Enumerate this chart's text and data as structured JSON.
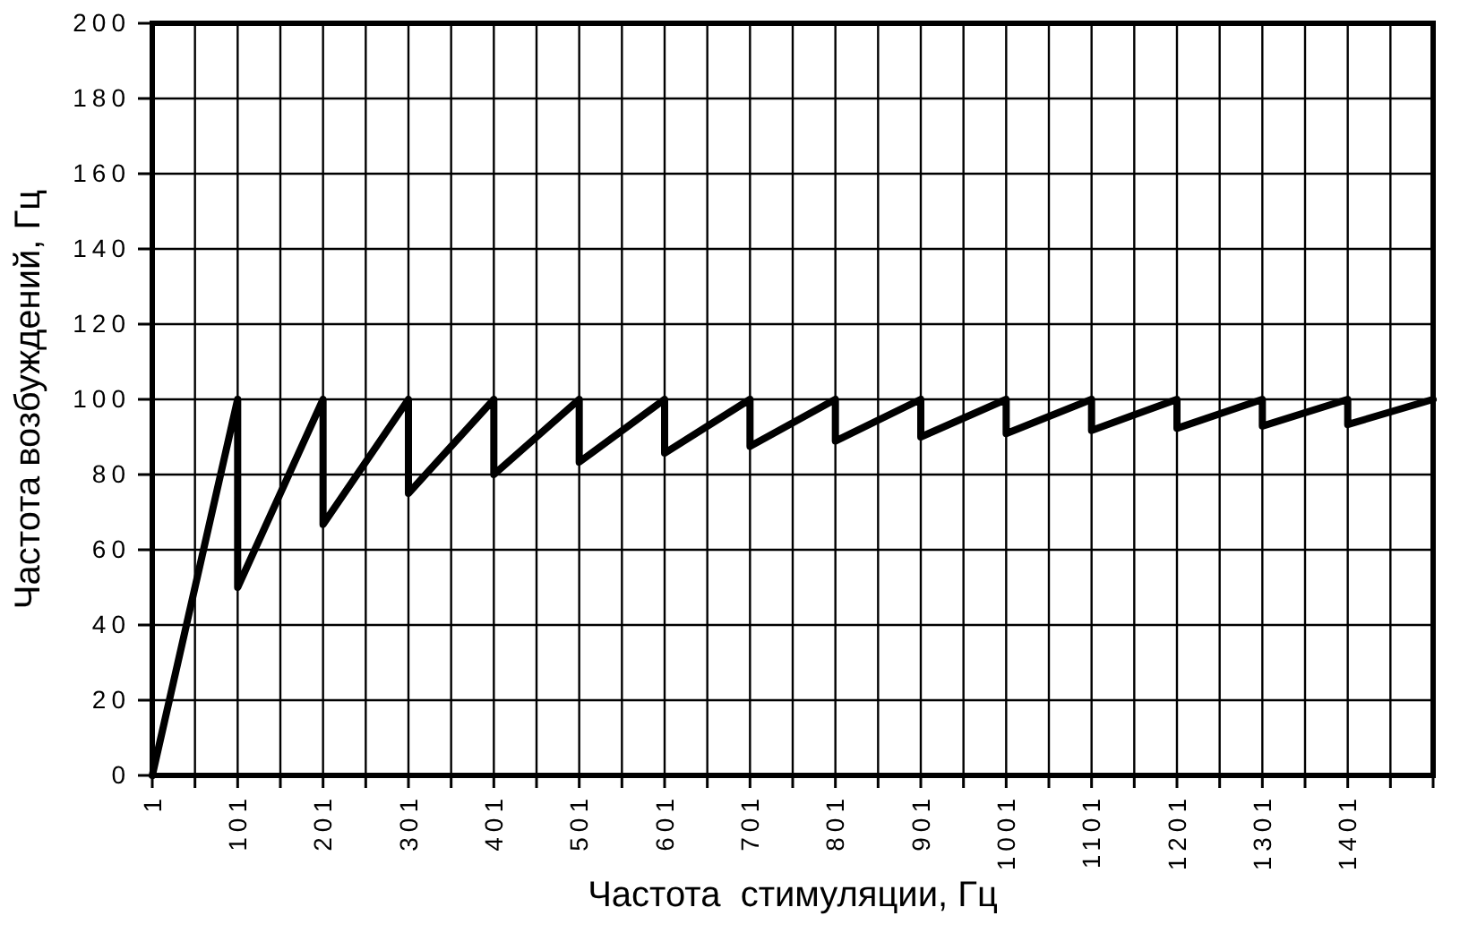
{
  "chart_data": {
    "type": "line",
    "xlabel": "Частота  стимуляции, Гц",
    "ylabel": "Частота возбуждений, Гц",
    "x": [
      1,
      101,
      101,
      201,
      201,
      301,
      301,
      401,
      401,
      501,
      501,
      601,
      601,
      701,
      701,
      801,
      801,
      901,
      901,
      1001,
      1001,
      1101,
      1101,
      1201,
      1201,
      1301,
      1301,
      1401,
      1401,
      1501
    ],
    "series": [
      {
        "color": "#000000",
        "values": [
          0,
          100,
          50,
          100,
          66.7,
          100,
          75,
          100,
          80,
          100,
          83.3,
          100,
          85.7,
          100,
          87.5,
          100,
          88.9,
          100,
          90,
          100,
          90.9,
          100,
          91.7,
          100,
          92.3,
          100,
          92.9,
          100,
          93.3,
          100
        ]
      }
    ],
    "xlim": [
      1,
      1501
    ],
    "xticks": [
      1,
      {
        "value": 51,
        "label": null
      },
      101,
      {
        "value": 151,
        "label": null
      },
      201,
      {
        "value": 251,
        "label": null
      },
      301,
      {
        "value": 351,
        "label": null
      },
      401,
      {
        "value": 451,
        "label": null
      },
      501,
      {
        "value": 551,
        "label": null
      },
      601,
      {
        "value": 651,
        "label": null
      },
      701,
      {
        "value": 751,
        "label": null
      },
      801,
      {
        "value": 851,
        "label": null
      },
      901,
      {
        "value": 951,
        "label": null
      },
      1001,
      {
        "value": 1051,
        "label": null
      },
      1101,
      {
        "value": 1151,
        "label": null
      },
      1201,
      {
        "value": 1251,
        "label": null
      },
      1301,
      {
        "value": 1351,
        "label": null
      },
      1401,
      {
        "value": 1451,
        "label": null
      },
      {
        "value": 1501,
        "label": null
      }
    ],
    "ylim": [
      0,
      200
    ],
    "yticks": [
      0,
      20,
      40,
      60,
      80,
      100,
      120,
      140,
      160,
      180,
      200
    ],
    "grid": true,
    "marker": "none",
    "line_style": "solid"
  }
}
